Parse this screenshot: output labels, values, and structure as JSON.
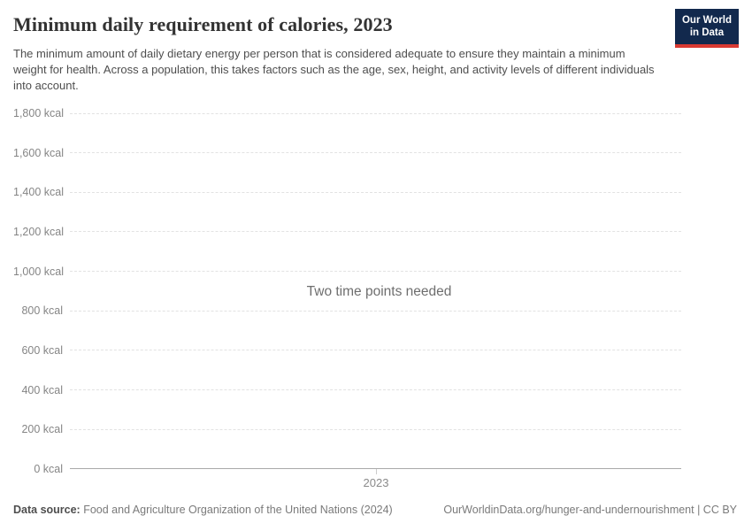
{
  "header": {
    "title": "Minimum daily requirement of calories, 2023",
    "subtitle": "The minimum amount of daily dietary energy per person that is considered adequate to ensure they maintain a minimum weight for health. Across a population, this takes factors such as the age, sex, height, and activity levels of different individuals into account.",
    "logo": {
      "line1": "Our World",
      "line2": "in Data",
      "bg_color": "#12294d",
      "stripe_color": "#d93a32"
    }
  },
  "chart": {
    "empty_message": "Two time points needed",
    "x_tick_label": "2023",
    "y_ticks": [
      "1,800 kcal",
      "1,600 kcal",
      "1,400 kcal",
      "1,200 kcal",
      "1,000 kcal",
      "800 kcal",
      "600 kcal",
      "400 kcal",
      "200 kcal",
      "0 kcal"
    ]
  },
  "chart_data": {
    "type": "line",
    "title": "Minimum daily requirement of calories, 2023",
    "subtitle": "The minimum amount of daily dietary energy per person that is considered adequate to ensure they maintain a minimum weight for health. Across a population, this takes factors such as the age, sex, height, and activity levels of different individuals into account.",
    "categories": [
      2023
    ],
    "series": [],
    "annotation": "Two time points needed",
    "xlabel": "",
    "ylabel": "kcal",
    "ylim": [
      0,
      1800
    ],
    "ytick_interval": 200,
    "ytick_values": [
      0,
      200,
      400,
      600,
      800,
      1000,
      1200,
      1400,
      1600,
      1800
    ],
    "grid": "horizontal-dashed",
    "legend_position": "none",
    "note": "Empty chart: no data series rendered; placeholder message shown in plot area"
  },
  "footer": {
    "datasource_label": "Data source:",
    "datasource_value": " Food and Agriculture Organization of the United Nations (2024)",
    "link": "OurWorldinData.org/hunger-and-undernourishment | CC BY"
  }
}
